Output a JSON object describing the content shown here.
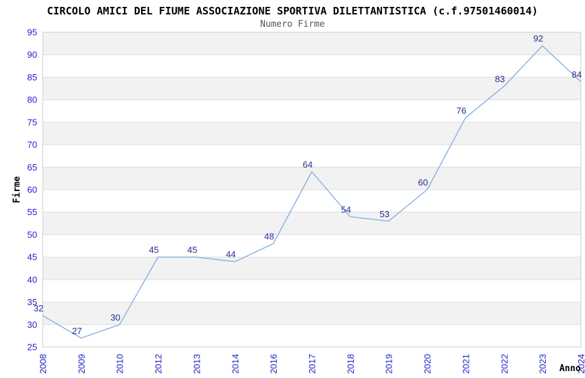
{
  "page": {
    "title": "CIRCOLO AMICI DEL FIUME ASSOCIAZIONE SPORTIVA DILETTANTISTICA (c.f.97501460014)",
    "subtitle": "Numero Firme"
  },
  "chart_data": {
    "type": "line",
    "title": "CIRCOLO AMICI DEL FIUME ASSOCIAZIONE SPORTIVA DILETTANTISTICA (c.f.97501460014)",
    "subtitle": "Numero Firme",
    "xlabel": "Anno",
    "ylabel": "Firme",
    "categories": [
      "2008",
      "2009",
      "2010",
      "2012",
      "2013",
      "2014",
      "2016",
      "2017",
      "2018",
      "2019",
      "2020",
      "2021",
      "2022",
      "2023",
      "2024"
    ],
    "values": [
      32,
      27,
      30,
      45,
      45,
      44,
      48,
      64,
      54,
      53,
      60,
      76,
      83,
      92,
      84
    ],
    "ylim": [
      25,
      95
    ],
    "ytick_step": 5,
    "legend_position": "none",
    "grid": "horizontal-bands",
    "colors": {
      "line": "#85b1e3",
      "tick_labels": "#2222cc",
      "data_labels": "#2b2b96",
      "band": "#f2f2f2",
      "band_alt": "#ffffff",
      "grid_line": "#dddddd",
      "plot_border": "#cccccc",
      "title": "#000000",
      "subtitle": "#555555"
    }
  }
}
